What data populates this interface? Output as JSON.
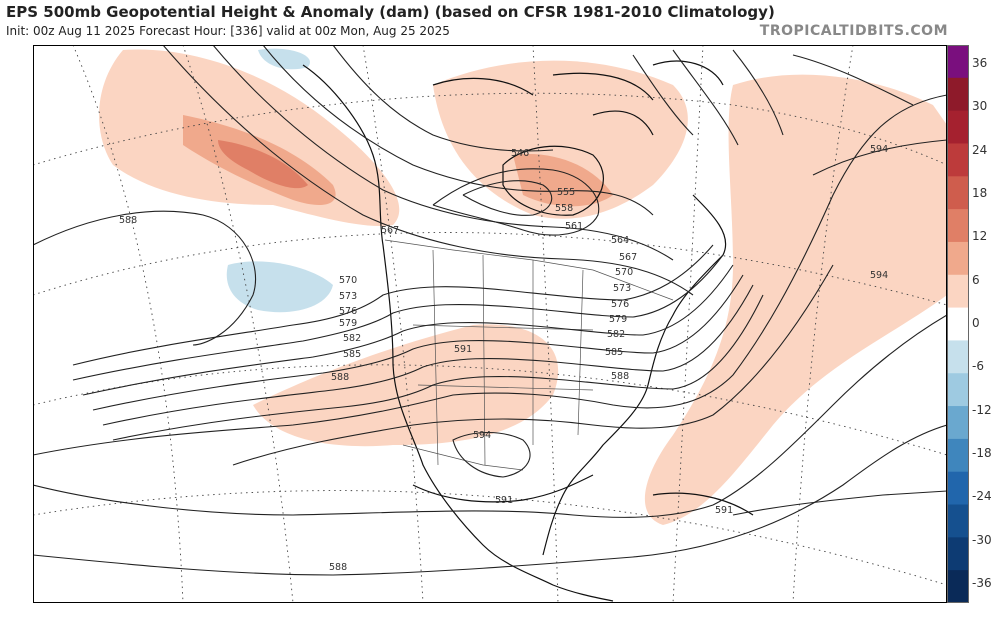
{
  "header": {
    "title": "EPS 500mb Geopotential Height & Anomaly (dam) (based on CFSR 1981-2010 Climatology)",
    "subtitle": "Init: 00z Aug 11 2025   Forecast Hour: [336]   valid at 00z Mon, Aug 25 2025",
    "brand": "TROPICALTIDBITS.COM"
  },
  "colorbar": {
    "labels": [
      "36",
      "30",
      "24",
      "18",
      "12",
      "6",
      "0",
      "-6",
      "-12",
      "-18",
      "-24",
      "-30",
      "-36"
    ],
    "colors": [
      "#7a0f7e",
      "#8e1a2a",
      "#a5212f",
      "#bd3b3b",
      "#cf5d4d",
      "#e07f66",
      "#f0a98c",
      "#fbd5c2",
      "#ffffff",
      "#c6e0ec",
      "#9ecae1",
      "#6aa8cf",
      "#3f86bd",
      "#2166ac",
      "#15508f",
      "#0d3b73",
      "#0a2a58"
    ]
  },
  "map": {
    "contours": {
      "labels": [
        "588",
        "570",
        "573",
        "576",
        "579",
        "582",
        "585",
        "588",
        "591",
        "594",
        "591",
        "588",
        "594",
        "594",
        "591",
        "567",
        "561",
        "558",
        "555",
        "546",
        "564",
        "567",
        "570",
        "573",
        "576",
        "579",
        "582",
        "585",
        "588"
      ]
    }
  }
}
